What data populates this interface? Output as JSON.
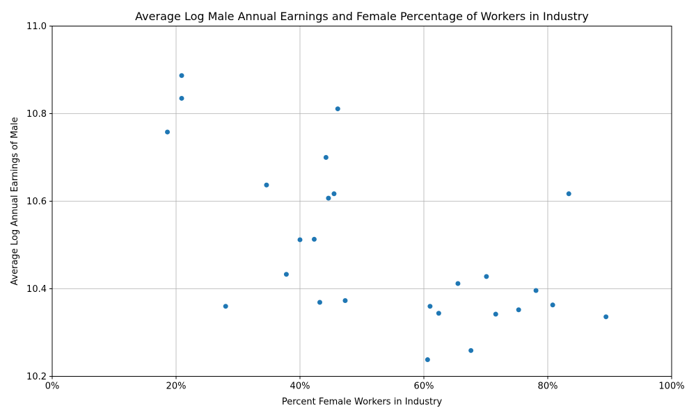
{
  "chart_data": {
    "type": "scatter",
    "title": "Average Log Male Annual Earnings and Female Percentage of Workers in Industry",
    "xlabel": "Percent Female Workers in Industry",
    "ylabel": "Average Log Annual Earnings of Male",
    "xlim": [
      0,
      1
    ],
    "ylim": [
      10.2,
      11.0
    ],
    "x_ticks": [
      0,
      0.2,
      0.4,
      0.6,
      0.8,
      1.0
    ],
    "x_tick_labels": [
      "0%",
      "20%",
      "40%",
      "60%",
      "80%",
      "100%"
    ],
    "y_ticks": [
      10.2,
      10.4,
      10.6,
      10.8,
      11.0
    ],
    "y_tick_labels": [
      "10.2",
      "10.4",
      "10.6",
      "10.8",
      "11.0"
    ],
    "grid": true,
    "color": "#1f77b4",
    "points": [
      {
        "x": 0.209,
        "y": 10.887
      },
      {
        "x": 0.209,
        "y": 10.835
      },
      {
        "x": 0.461,
        "y": 10.811
      },
      {
        "x": 0.186,
        "y": 10.758
      },
      {
        "x": 0.442,
        "y": 10.7
      },
      {
        "x": 0.346,
        "y": 10.637
      },
      {
        "x": 0.455,
        "y": 10.617
      },
      {
        "x": 0.446,
        "y": 10.607
      },
      {
        "x": 0.834,
        "y": 10.617
      },
      {
        "x": 0.4,
        "y": 10.512
      },
      {
        "x": 0.423,
        "y": 10.513
      },
      {
        "x": 0.378,
        "y": 10.433
      },
      {
        "x": 0.701,
        "y": 10.428
      },
      {
        "x": 0.655,
        "y": 10.412
      },
      {
        "x": 0.781,
        "y": 10.396
      },
      {
        "x": 0.473,
        "y": 10.373
      },
      {
        "x": 0.432,
        "y": 10.369
      },
      {
        "x": 0.808,
        "y": 10.363
      },
      {
        "x": 0.28,
        "y": 10.36
      },
      {
        "x": 0.61,
        "y": 10.36
      },
      {
        "x": 0.753,
        "y": 10.352
      },
      {
        "x": 0.624,
        "y": 10.344
      },
      {
        "x": 0.716,
        "y": 10.342
      },
      {
        "x": 0.894,
        "y": 10.336
      },
      {
        "x": 0.676,
        "y": 10.259
      },
      {
        "x": 0.606,
        "y": 10.238
      }
    ]
  }
}
